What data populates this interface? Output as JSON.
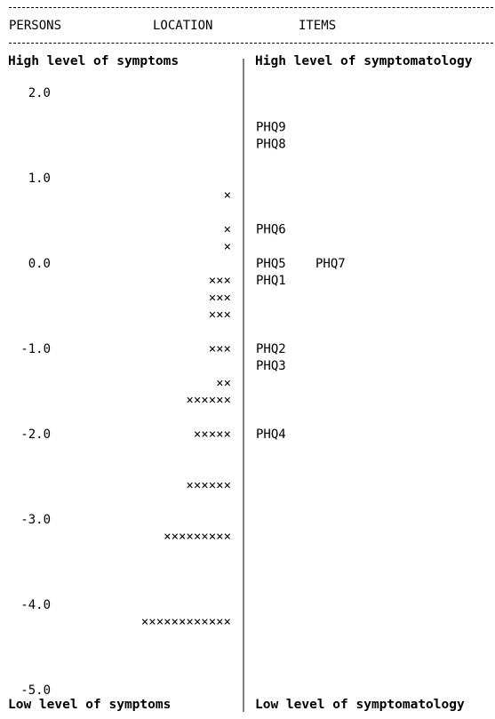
{
  "header": {
    "persons": "PERSONS",
    "location": "LOCATION",
    "items": "ITEMS"
  },
  "top_labels": {
    "persons": "High level of symptoms",
    "items": "High level of symptomatology"
  },
  "bottom_labels": {
    "persons": "Low level of symptoms",
    "items": "Low level of symptomatology"
  },
  "chart_data": {
    "type": "scatter",
    "title": "",
    "ylim": [
      -5.0,
      2.0
    ],
    "y_ticks": [
      2.0,
      1.0,
      0.0,
      -1.0,
      -2.0,
      -3.0,
      -4.0,
      -5.0
    ],
    "tick_labels": [
      "2.0",
      "1.0",
      "0.0",
      "-1.0",
      "-2.0",
      "-3.0",
      "-4.0",
      "-5.0"
    ],
    "person_marker": "×",
    "persons": [
      {
        "y": 0.8,
        "count": 1
      },
      {
        "y": 0.4,
        "count": 1
      },
      {
        "y": 0.2,
        "count": 1
      },
      {
        "y": -0.2,
        "count": 3
      },
      {
        "y": -0.4,
        "count": 3
      },
      {
        "y": -0.6,
        "count": 3
      },
      {
        "y": -1.0,
        "count": 3
      },
      {
        "y": -1.4,
        "count": 2
      },
      {
        "y": -1.6,
        "count": 6
      },
      {
        "y": -2.0,
        "count": 5
      },
      {
        "y": -2.6,
        "count": 6
      },
      {
        "y": -3.2,
        "count": 9
      },
      {
        "y": -4.2,
        "count": 12
      }
    ],
    "items": [
      {
        "label": "PHQ9",
        "y": 1.6
      },
      {
        "label": "PHQ8",
        "y": 1.4
      },
      {
        "label": "PHQ6",
        "y": 0.4
      },
      {
        "label": "PHQ5",
        "y": 0.0
      },
      {
        "label": "PHQ7",
        "y": 0.0
      },
      {
        "label": "PHQ1",
        "y": -0.2
      },
      {
        "label": "PHQ2",
        "y": -1.0
      },
      {
        "label": "PHQ3",
        "y": -1.2
      },
      {
        "label": "PHQ4",
        "y": -2.0
      }
    ]
  }
}
